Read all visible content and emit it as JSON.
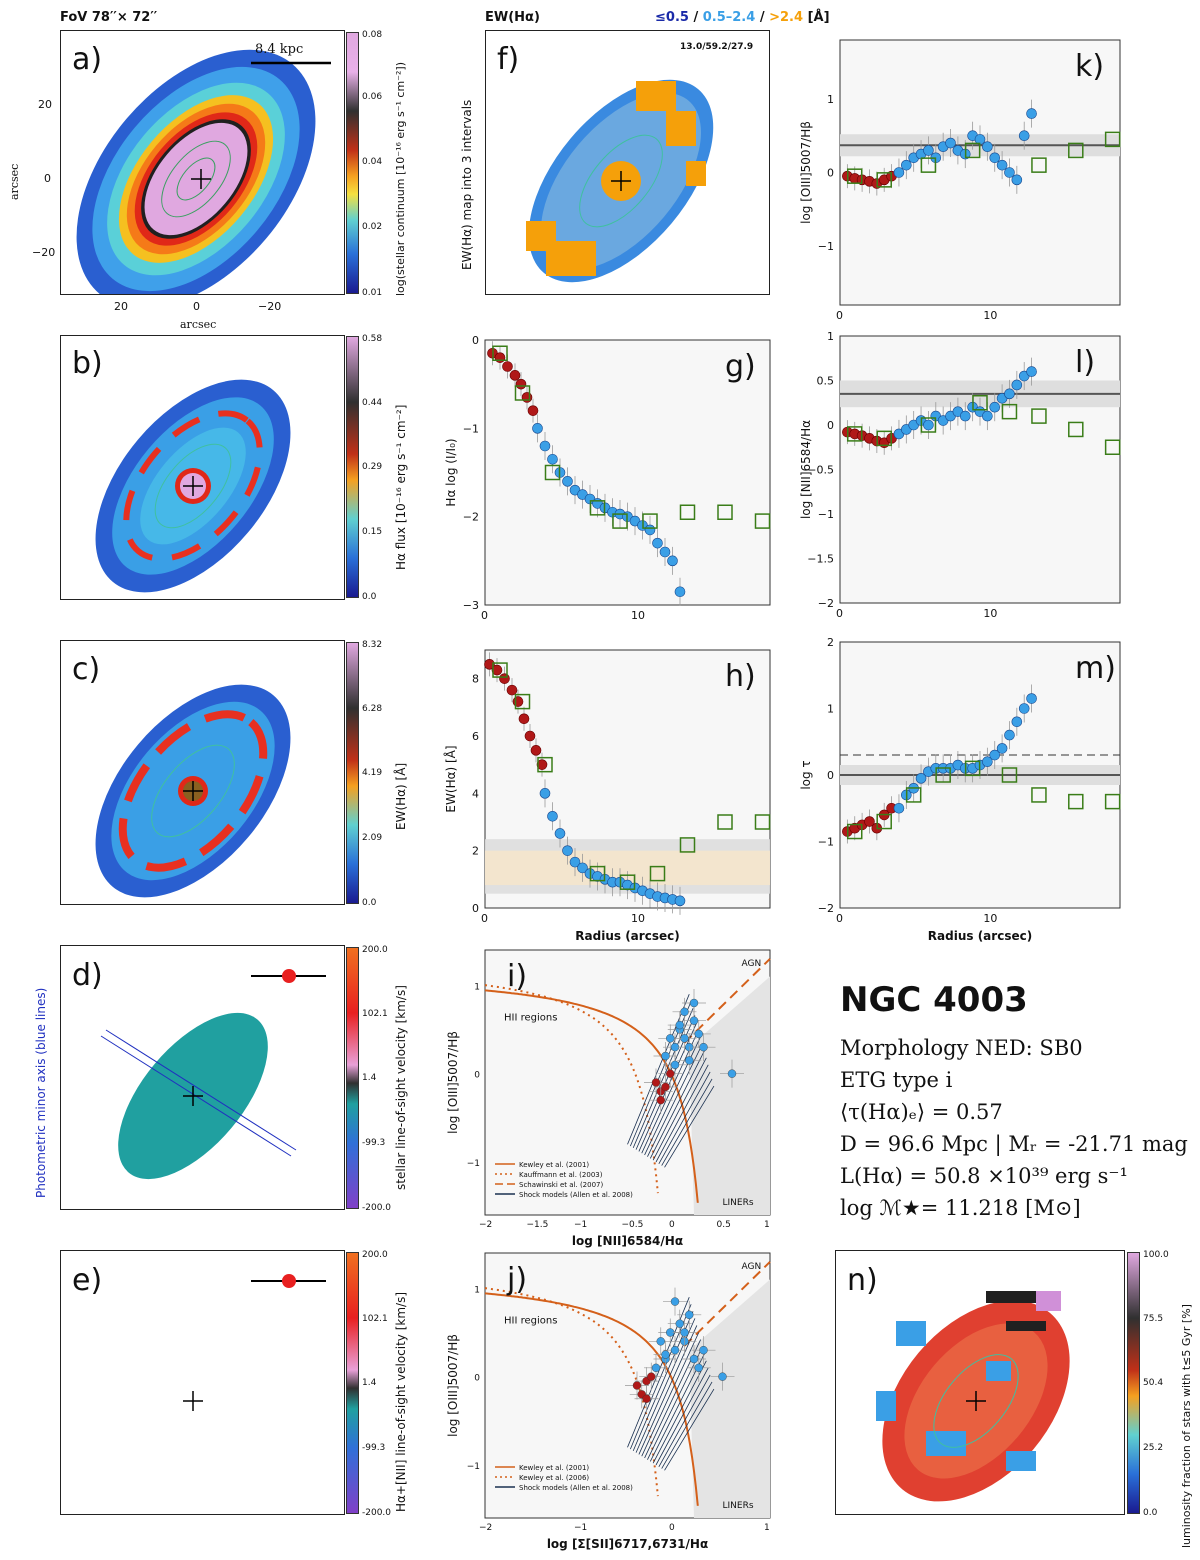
{
  "header": {
    "fov": "FoV 78′′× 72′′",
    "ew_title": "EW(Hα)",
    "ew_levels_a": "≤0.5",
    "ew_levels_b": "0.5–2.4",
    "ew_levels_c": ">2.4",
    "ew_unit": "[Å]",
    "sep": "/",
    "code": "13.0/59.2/27.9"
  },
  "colors": {
    "dark_blue": "#1a2aa8",
    "light_blue": "#3a9fe6",
    "orange": "#f5a00a",
    "red": "#b01818",
    "green": "#3a7d18",
    "curve": "#d4601a"
  },
  "panels": {
    "a": {
      "letter": "a)",
      "scale_label": "8.4  kpc",
      "xlabel": "arcsec",
      "ylabel": "arcsec",
      "cbar_label": "log(stellar continuum [10⁻¹⁶ erg s⁻¹ cm⁻²])",
      "cbar_ticks": [
        "0.08",
        "0.06",
        "0.04",
        "0.02",
        "0.01"
      ],
      "xticks": [
        "20",
        "0",
        "−20"
      ],
      "yticks": [
        "20",
        "0",
        "−20"
      ]
    },
    "b": {
      "letter": "b)",
      "cbar_label": "Hα flux [10⁻¹⁶ erg s⁻¹ cm⁻²]",
      "cbar_ticks": [
        "0.58",
        "0.44",
        "0.29",
        "0.15",
        "0.0"
      ]
    },
    "c": {
      "letter": "c)",
      "cbar_label": "EW(Hα) [Å]",
      "cbar_ticks": [
        "8.32",
        "6.28",
        "4.19",
        "2.09",
        "0.0"
      ]
    },
    "d": {
      "letter": "d)",
      "cbar_label": "stellar line-of-sight velocity [km/s]",
      "side_label": "Photometric minor axis (blue lines)",
      "cbar_ticks": [
        "200.0",
        "102.1",
        "1.4",
        "-99.3",
        "-200.0"
      ]
    },
    "e": {
      "letter": "e)",
      "cbar_label": "Hα+[NII] line-of-sight velocity [km/s]",
      "cbar_ticks": [
        "200.0",
        "102.1",
        "1.4",
        "-99.3",
        "-200.0"
      ]
    },
    "f": {
      "letter": "f)",
      "ylabel": "EW(Hα) map into 3 intervals"
    },
    "n": {
      "letter": "n)",
      "cbar_label": "luminosity fraction of stars with t≤5 Gyr [%]",
      "cbar_ticks": [
        "100.0",
        "75.5",
        "50.4",
        "25.2",
        "0.0"
      ]
    }
  },
  "chart_data": [
    {
      "id": "g",
      "letter": "g)",
      "type": "scatter",
      "xlabel": "",
      "ylabel": "Hα log (I/I₀)",
      "xlim": [
        0,
        19
      ],
      "ylim": [
        -3,
        0
      ],
      "xticks": [
        "0",
        "10"
      ],
      "yticks": [
        "0",
        "−1",
        "−2",
        "−3"
      ],
      "series": [
        {
          "name": "inner",
          "x": [
            0.5,
            1.0,
            1.5,
            2.0,
            2.4,
            2.8,
            3.2
          ],
          "y": [
            -0.15,
            -0.2,
            -0.3,
            -0.4,
            -0.5,
            -0.65,
            -0.8
          ]
        },
        {
          "name": "spaxels",
          "x": [
            3.5,
            4.0,
            4.5,
            5.0,
            5.5,
            6.0,
            6.5,
            7.0,
            7.5,
            8.0,
            8.5,
            9.0,
            9.5,
            10.0,
            10.5,
            11.0,
            11.5,
            12.0,
            12.5,
            13.0
          ],
          "y": [
            -1.0,
            -1.2,
            -1.35,
            -1.5,
            -1.6,
            -1.7,
            -1.75,
            -1.8,
            -1.85,
            -1.9,
            -1.95,
            -1.97,
            -2.0,
            -2.05,
            -2.1,
            -2.15,
            -2.3,
            -2.4,
            -2.5,
            -2.85
          ]
        },
        {
          "name": "radial bins",
          "x": [
            1.0,
            2.5,
            4.5,
            7.5,
            9.0,
            11.0,
            13.5,
            16.0,
            18.5
          ],
          "y": [
            -0.15,
            -0.6,
            -1.5,
            -1.9,
            -2.05,
            -2.05,
            -1.95,
            -1.95,
            -2.05
          ]
        }
      ]
    },
    {
      "id": "h",
      "letter": "h)",
      "type": "scatter",
      "xlabel": "Radius (arcsec)",
      "ylabel": "EW(Hα) [Å]",
      "xlim": [
        0,
        19
      ],
      "ylim": [
        0,
        9
      ],
      "xticks": [
        "0",
        "10"
      ],
      "yticks": [
        "0",
        "2",
        "4",
        "6",
        "8"
      ],
      "bands": [
        [
          0.5,
          2.4
        ],
        [
          0.8,
          2.0
        ]
      ],
      "series": [
        {
          "name": "inner",
          "x": [
            0.3,
            0.8,
            1.3,
            1.8,
            2.2,
            2.6,
            3.0,
            3.4,
            3.8
          ],
          "y": [
            8.5,
            8.3,
            8.0,
            7.6,
            7.2,
            6.6,
            6.0,
            5.5,
            5.0
          ]
        },
        {
          "name": "spaxels",
          "x": [
            4.0,
            4.5,
            5.0,
            5.5,
            6.0,
            6.5,
            7.0,
            7.5,
            8.0,
            8.5,
            9.0,
            9.5,
            10.0,
            10.5,
            11.0,
            11.5,
            12.0,
            12.5,
            13.0
          ],
          "y": [
            4.0,
            3.2,
            2.6,
            2.0,
            1.6,
            1.4,
            1.2,
            1.1,
            1.0,
            0.9,
            0.9,
            0.8,
            0.7,
            0.6,
            0.5,
            0.4,
            0.35,
            0.3,
            0.25
          ]
        },
        {
          "name": "radial bins",
          "x": [
            1.0,
            2.5,
            4.0,
            7.5,
            9.5,
            11.5,
            13.5,
            16.0,
            18.5
          ],
          "y": [
            8.3,
            7.2,
            5.0,
            1.2,
            0.9,
            1.2,
            2.2,
            3.0,
            3.0
          ]
        }
      ]
    },
    {
      "id": "k",
      "letter": "k)",
      "type": "scatter",
      "xlabel": "",
      "ylabel": "log [OIII]5007/Hβ",
      "xlim": [
        0,
        19
      ],
      "ylim": [
        -1.8,
        1.8
      ],
      "xticks": [
        "0",
        "10"
      ],
      "yticks": [
        "1",
        "0",
        "−1"
      ],
      "hline": 0.37,
      "series": [
        {
          "name": "inner",
          "x": [
            0.5,
            1.0,
            1.5,
            2.0,
            2.5,
            3.0,
            3.5
          ],
          "y": [
            -0.05,
            -0.08,
            -0.1,
            -0.12,
            -0.15,
            -0.1,
            -0.05
          ]
        },
        {
          "name": "spaxels",
          "x": [
            4.0,
            4.5,
            5.0,
            5.5,
            6.0,
            6.5,
            7.0,
            7.5,
            8.0,
            8.5,
            9.0,
            9.5,
            10.0,
            10.5,
            11.0,
            11.5,
            12.0,
            12.5,
            13.0
          ],
          "y": [
            0.0,
            0.1,
            0.2,
            0.25,
            0.3,
            0.2,
            0.35,
            0.4,
            0.3,
            0.25,
            0.5,
            0.45,
            0.35,
            0.2,
            0.1,
            0.0,
            -0.1,
            0.5,
            0.8
          ]
        },
        {
          "name": "radial bins",
          "x": [
            1.0,
            3.0,
            6.0,
            9.0,
            13.5,
            16.0,
            18.5
          ],
          "y": [
            -0.05,
            -0.1,
            0.1,
            0.3,
            0.1,
            0.3,
            0.45
          ]
        }
      ]
    },
    {
      "id": "l",
      "letter": "l)",
      "type": "scatter",
      "xlabel": "",
      "ylabel": "log [NII]6584/Hα",
      "xlim": [
        0,
        19
      ],
      "ylim": [
        -2,
        1
      ],
      "xticks": [
        "0",
        "10"
      ],
      "yticks": [
        "1",
        "0.5",
        "0",
        "−0.5",
        "−1",
        "−1.5",
        "−2"
      ],
      "hline": 0.35,
      "series": [
        {
          "name": "inner",
          "x": [
            0.5,
            1.0,
            1.5,
            2.0,
            2.5,
            3.0,
            3.5
          ],
          "y": [
            -0.08,
            -0.1,
            -0.12,
            -0.15,
            -0.18,
            -0.2,
            -0.15
          ]
        },
        {
          "name": "spaxels",
          "x": [
            4.0,
            4.5,
            5.0,
            5.5,
            6.0,
            6.5,
            7.0,
            7.5,
            8.0,
            8.5,
            9.0,
            9.5,
            10.0,
            10.5,
            11.0,
            11.5,
            12.0,
            12.5,
            13.0
          ],
          "y": [
            -0.1,
            -0.05,
            0.0,
            0.05,
            0.0,
            0.1,
            0.05,
            0.1,
            0.15,
            0.1,
            0.2,
            0.15,
            0.1,
            0.2,
            0.3,
            0.35,
            0.45,
            0.55,
            0.6
          ]
        },
        {
          "name": "radial bins",
          "x": [
            1.0,
            3.0,
            6.0,
            9.5,
            11.5,
            13.5,
            16.0,
            18.5
          ],
          "y": [
            -0.1,
            -0.15,
            0.0,
            0.25,
            0.15,
            0.1,
            -0.05,
            -0.25
          ]
        }
      ]
    },
    {
      "id": "m",
      "letter": "m)",
      "type": "scatter",
      "xlabel": "Radius (arcsec)",
      "ylabel": "log τ",
      "xlim": [
        0,
        19
      ],
      "ylim": [
        -2,
        2
      ],
      "xticks": [
        "0",
        "10"
      ],
      "yticks": [
        "2",
        "1",
        "0",
        "−1",
        "−2"
      ],
      "hline": 0.0,
      "dashed": 0.3,
      "series": [
        {
          "name": "inner",
          "x": [
            0.5,
            1.0,
            1.5,
            2.0,
            2.5,
            3.0,
            3.5
          ],
          "y": [
            -0.85,
            -0.8,
            -0.75,
            -0.7,
            -0.8,
            -0.6,
            -0.5
          ]
        },
        {
          "name": "spaxels",
          "x": [
            4.0,
            4.5,
            5.0,
            5.5,
            6.0,
            6.5,
            7.0,
            7.5,
            8.0,
            8.5,
            9.0,
            9.5,
            10.0,
            10.5,
            11.0,
            11.5,
            12.0,
            12.5,
            13.0
          ],
          "y": [
            -0.5,
            -0.3,
            -0.2,
            -0.05,
            0.05,
            0.1,
            0.1,
            0.1,
            0.15,
            0.1,
            0.1,
            0.15,
            0.2,
            0.3,
            0.4,
            0.6,
            0.8,
            1.0,
            1.15
          ]
        },
        {
          "name": "radial bins",
          "x": [
            1.0,
            3.0,
            5.0,
            7.0,
            9.0,
            11.5,
            13.5,
            16.0,
            18.5
          ],
          "y": [
            -0.85,
            -0.7,
            -0.3,
            0.0,
            0.1,
            0.0,
            -0.3,
            -0.4,
            -0.4
          ]
        }
      ]
    },
    {
      "id": "i",
      "letter": "i)",
      "type": "scatter",
      "xlabel": "log [NII]6584/Hα",
      "ylabel": "log [OIII]5007/Hβ",
      "xlim": [
        -2,
        1
      ],
      "ylim": [
        -1.6,
        1.4
      ],
      "xticks": [
        "−2",
        "−1.5",
        "−1",
        "−0.5",
        "0",
        "0.5",
        "1"
      ],
      "yticks": [
        "1",
        "0",
        "−1"
      ],
      "labels": {
        "agn": "AGN",
        "hii": "HII regions",
        "liners": "LINERs"
      },
      "legend": [
        "Kewley et al. (2001)",
        "Kauffmann et al. (2003)",
        "Schawinski et al. (2007)",
        "Shock models (Allen et al. 2008)"
      ],
      "series": [
        {
          "name": "inner",
          "x": [
            -0.2,
            -0.15,
            -0.1,
            -0.05,
            -0.15
          ],
          "y": [
            -0.1,
            -0.2,
            -0.15,
            0.0,
            -0.3
          ]
        },
        {
          "name": "spaxels",
          "x": [
            -0.1,
            0.0,
            0.05,
            0.1,
            0.15,
            0.2,
            0.0,
            -0.05,
            0.1,
            0.3,
            0.6,
            0.2,
            0.05,
            0.15,
            0.25
          ],
          "y": [
            0.2,
            0.3,
            0.5,
            0.4,
            0.3,
            0.6,
            0.1,
            0.4,
            0.7,
            0.3,
            0.0,
            0.8,
            0.55,
            0.15,
            0.45
          ]
        }
      ]
    },
    {
      "id": "j",
      "letter": "j)",
      "type": "scatter",
      "xlabel": "log [Σ[SII]6717,6731/Hα",
      "ylabel": "log [OIII]5007/Hβ",
      "xlim": [
        -2,
        1
      ],
      "ylim": [
        -1.6,
        1.4
      ],
      "xticks": [
        "−2",
        "−1",
        "0",
        "1"
      ],
      "yticks": [
        "1",
        "0",
        "−1"
      ],
      "labels": {
        "agn": "AGN",
        "hii": "HII regions",
        "liners": "LINERs"
      },
      "legend": [
        "Kewley et al. (2001)",
        "Kewley et al. (2006)",
        "Shock models (Allen et al. 2008)"
      ],
      "series": [
        {
          "name": "inner",
          "x": [
            -0.4,
            -0.35,
            -0.3,
            -0.25,
            -0.3
          ],
          "y": [
            -0.1,
            -0.2,
            -0.05,
            0.0,
            -0.25
          ]
        },
        {
          "name": "spaxels",
          "x": [
            -0.2,
            -0.1,
            0.0,
            0.1,
            -0.15,
            0.05,
            0.2,
            -0.05,
            0.15,
            0.3,
            0.5,
            0.0,
            -0.1,
            0.25,
            0.1
          ],
          "y": [
            0.1,
            0.2,
            0.3,
            0.4,
            0.4,
            0.6,
            0.2,
            0.5,
            0.7,
            0.3,
            0.0,
            0.85,
            0.25,
            0.1,
            0.5
          ]
        }
      ]
    }
  ],
  "info": {
    "name": "NGC 4003",
    "morph": "Morphology NED: SB0",
    "etg": "ETG type i",
    "tau": "⟨τ(Hα)ₑ⟩ = 0.57",
    "dist": "D = 96.6 Mpc | Mᵣ = -21.71 mag",
    "lum": "L(Hα) = 50.8 ×10³⁹ erg s⁻¹",
    "mass": "log ℳ★= 11.218 [M⊙]"
  }
}
